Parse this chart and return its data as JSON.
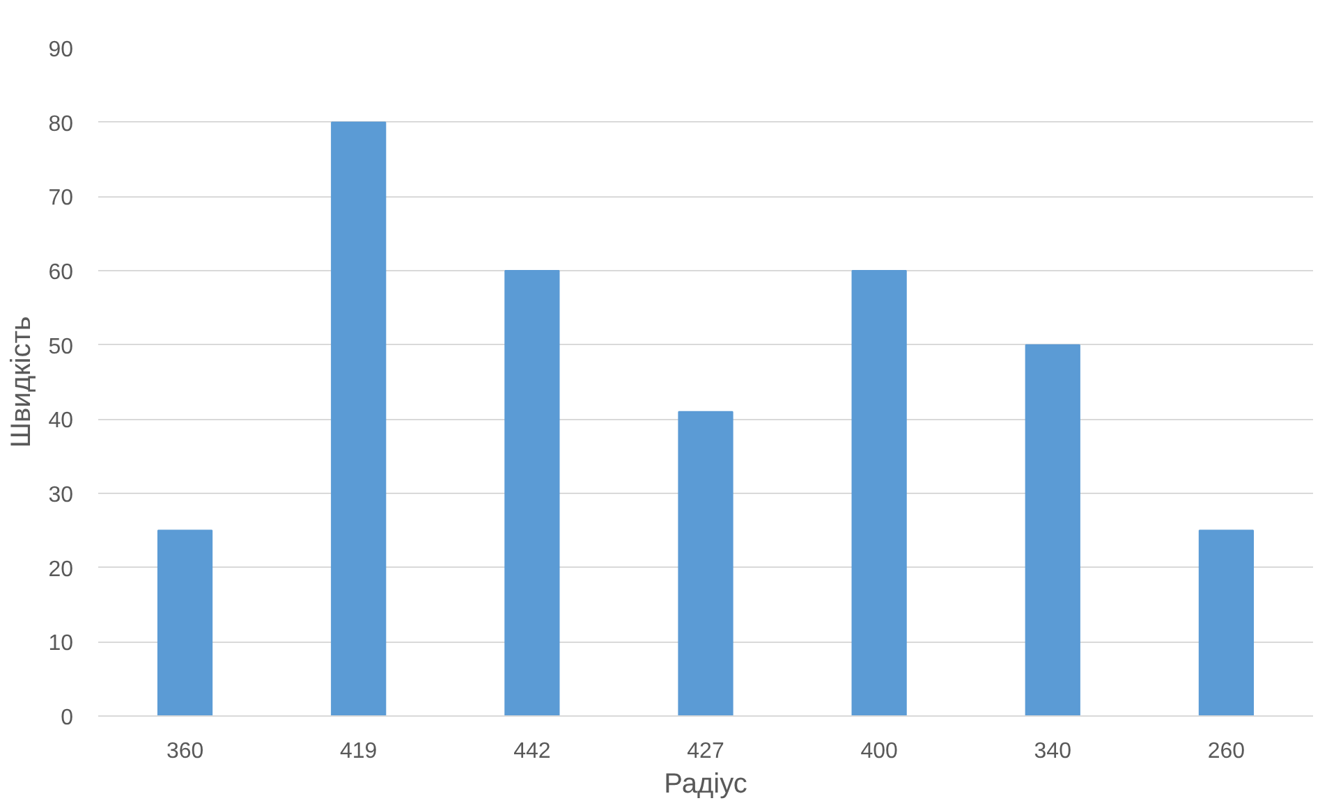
{
  "chart_data": {
    "type": "bar",
    "xlabel": "Радіус",
    "ylabel": "Швидкість",
    "categories": [
      "360",
      "419",
      "442",
      "427",
      "400",
      "340",
      "260"
    ],
    "values": [
      25,
      80,
      60,
      41,
      60,
      50,
      25
    ],
    "color": "#5b9bd5",
    "ylim": [
      0,
      90
    ],
    "yticks": [
      0,
      10,
      20,
      30,
      40,
      50,
      60,
      70,
      80,
      90
    ],
    "grid": "y"
  }
}
